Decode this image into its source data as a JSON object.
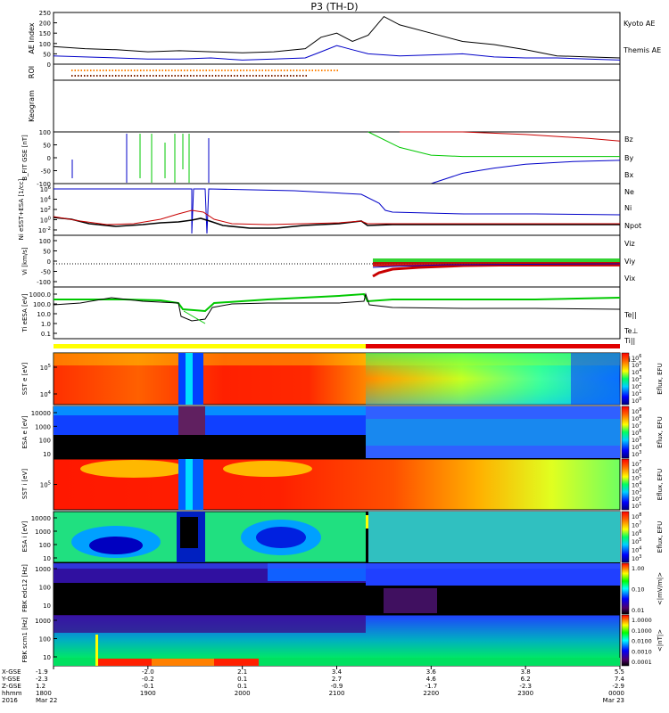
{
  "title": "P3 (TH-D)",
  "chart_data": [
    {
      "id": "ae",
      "type": "line",
      "ylabel": "AE Index",
      "ylim": [
        0,
        250
      ],
      "yticks": [
        "0",
        "50",
        "100",
        "150",
        "200",
        "250"
      ],
      "series": [
        {
          "name": "Kyoto AE",
          "color": "#0000c8",
          "x": [
            "18:00",
            "18:20",
            "18:40",
            "19:00",
            "19:20",
            "19:40",
            "20:00",
            "20:20",
            "20:40",
            "20:50",
            "21:00",
            "21:10",
            "21:20",
            "21:40",
            "22:00",
            "22:20",
            "22:40",
            "23:00",
            "23:20",
            "23:40",
            "24:00"
          ],
          "values": [
            40,
            35,
            30,
            25,
            25,
            30,
            20,
            25,
            30,
            60,
            90,
            70,
            50,
            40,
            45,
            50,
            35,
            30,
            30,
            25,
            20
          ]
        },
        {
          "name": "Themis AE",
          "color": "#000000",
          "x": [
            "18:00",
            "18:20",
            "18:40",
            "19:00",
            "19:20",
            "19:40",
            "20:00",
            "20:20",
            "20:40",
            "20:50",
            "21:00",
            "21:10",
            "21:20",
            "21:30",
            "21:40",
            "22:00",
            "22:20",
            "22:40",
            "23:00",
            "23:20",
            "23:40",
            "24:00"
          ],
          "values": [
            85,
            75,
            70,
            60,
            65,
            60,
            55,
            60,
            75,
            130,
            150,
            110,
            140,
            230,
            190,
            150,
            110,
            95,
            70,
            40,
            35,
            30
          ]
        }
      ]
    },
    {
      "id": "roi",
      "type": "line",
      "ylabel": "ROI",
      "note_colors": [
        "#ff8000",
        "#7a2000"
      ]
    },
    {
      "id": "keogram",
      "type": "heatmap",
      "ylabel": "Keogram"
    },
    {
      "id": "bfit",
      "type": "line",
      "ylabel": "B_FIT GSE [nT]",
      "ylim": [
        -100,
        100
      ],
      "yticks": [
        "-100",
        "-50",
        "0",
        "50",
        "100"
      ],
      "series": [
        {
          "name": "Bz",
          "color": "#c80000",
          "x": [
            "21:40",
            "22:20",
            "23:00",
            "23:40",
            "24:00"
          ],
          "values": [
            100,
            100,
            90,
            75,
            65
          ]
        },
        {
          "name": "By",
          "color": "#00c800",
          "x": [
            "21:20",
            "21:40",
            "22:00",
            "22:20",
            "23:00",
            "24:00"
          ],
          "values": [
            100,
            40,
            10,
            5,
            5,
            5
          ]
        },
        {
          "name": "Bx",
          "color": "#0000c8",
          "x": [
            "22:00",
            "22:20",
            "22:40",
            "23:00",
            "23:30",
            "24:00"
          ],
          "values": [
            -100,
            -60,
            -40,
            -25,
            -15,
            -10
          ]
        }
      ]
    },
    {
      "id": "ni",
      "type": "line",
      "ylabel": "Ni eSST+ESA [1/cc]",
      "yscale": "log",
      "yticks": [
        "10^-2",
        "10^0",
        "10^2",
        "10^4",
        "10^6"
      ],
      "series": [
        {
          "name": "Ne",
          "color": "#c80000",
          "values": [
            1,
            0.5,
            0.3,
            0.08,
            0.3,
            0.5,
            0.5,
            0.2,
            0.2,
            0.2
          ]
        },
        {
          "name": "Ni",
          "color": "#000000",
          "values": [
            1,
            0.3,
            0.2,
            0.05,
            0.2,
            0.2,
            0.3,
            0.2,
            0.2,
            0.2
          ]
        },
        {
          "name": "Npot",
          "color": "#0000c8",
          "values": [
            1000000,
            1000000,
            1000000,
            1000000,
            500000,
            50000,
            500,
            100,
            50,
            30
          ]
        }
      ]
    },
    {
      "id": "vi",
      "type": "line",
      "ylabel": "Vi [km/s]",
      "ylim": [
        -150,
        150
      ],
      "yticks": [
        "-100",
        "-50",
        "0",
        "50",
        "100"
      ],
      "series": [
        {
          "name": "Viz"
        },
        {
          "name": "Viy"
        },
        {
          "name": "Vix"
        }
      ]
    },
    {
      "id": "ti",
      "type": "line",
      "ylabel": "Ti eESA [eV]",
      "yscale": "log",
      "yticks": [
        "0.1",
        "1.0",
        "10.0",
        "100.0",
        "1000.0"
      ],
      "series": [
        {
          "name": "Te||"
        },
        {
          "name": "Te⊥"
        },
        {
          "name": "Ti||"
        },
        {
          "name": "Ti⊥"
        }
      ]
    },
    {
      "id": "sst_e",
      "type": "heatmap",
      "ylabel": "SST e [eV]",
      "yticks": [
        "10^4",
        "10^5"
      ],
      "cbar_label": "Eflux, EFU",
      "cbar_ticks": [
        "10^6",
        "10^5",
        "10^4",
        "10^3",
        "10^2",
        "10^1",
        "10^0"
      ]
    },
    {
      "id": "esa_e",
      "type": "heatmap",
      "ylabel": "ESA e [eV]",
      "yticks": [
        "10",
        "100",
        "1000",
        "10000"
      ],
      "cbar_label": "Eflux, EFU",
      "cbar_ticks": [
        "10^9",
        "10^8",
        "10^7",
        "10^6",
        "10^5",
        "10^4",
        "10^3"
      ]
    },
    {
      "id": "sst_i",
      "type": "heatmap",
      "ylabel": "SST i [eV]",
      "yticks": [
        "10^5"
      ],
      "cbar_label": "Eflux, EFU",
      "cbar_ticks": [
        "10^7",
        "10^6",
        "10^5",
        "10^4",
        "10^3",
        "10^2",
        "10^1"
      ]
    },
    {
      "id": "esa_i",
      "type": "heatmap",
      "ylabel": "ESA i [eV]",
      "yticks": [
        "10",
        "100",
        "1000",
        "10000"
      ],
      "cbar_label": "Eflux, EFU",
      "cbar_ticks": [
        "10^8",
        "10^7",
        "10^6",
        "10^5",
        "10^4",
        "10^3"
      ]
    },
    {
      "id": "fbk_e",
      "type": "heatmap",
      "ylabel": "FBK edc12 [Hz]",
      "yticks": [
        "10",
        "100",
        "1000"
      ],
      "cbar_label": "<|mV/m|>",
      "cbar_ticks": [
        "1.00",
        "0.10",
        "0.01"
      ]
    },
    {
      "id": "fbk_b",
      "type": "heatmap",
      "ylabel": "FBK scm1 [Hz]",
      "yticks": [
        "10",
        "100",
        "1000"
      ],
      "cbar_label": "<|nT|>",
      "cbar_ticks": [
        "1.0000",
        "0.1000",
        "0.0100",
        "0.0010",
        "0.0001"
      ]
    }
  ],
  "xaxis": {
    "row_labels": [
      "X-GSE",
      "Y-GSE",
      "Z-GSE",
      "hhmm",
      "2016"
    ],
    "ticks": [
      {
        "x": "18:00",
        "lines": [
          "-1.9",
          "-2.3",
          "1.2",
          "1800",
          "Mar 22"
        ]
      },
      {
        "x": "19:00",
        "lines": [
          "-2.0",
          "-0.2",
          "-0.1",
          "1900",
          ""
        ]
      },
      {
        "x": "20:00",
        "lines": [
          "2.1",
          "0.1",
          "0.1",
          "2000",
          ""
        ]
      },
      {
        "x": "21:00",
        "lines": [
          "3.4",
          "2.7",
          "-0.9",
          "2100",
          ""
        ]
      },
      {
        "x": "22:00",
        "lines": [
          "3.6",
          "4.6",
          "-1.7",
          "2200",
          ""
        ]
      },
      {
        "x": "23:00",
        "lines": [
          "3.8",
          "6.2",
          "-2.3",
          "2300",
          ""
        ]
      },
      {
        "x": "24:00",
        "lines": [
          "5.5",
          "7.4",
          "-2.9",
          "0000",
          "Mar 23"
        ]
      }
    ]
  }
}
